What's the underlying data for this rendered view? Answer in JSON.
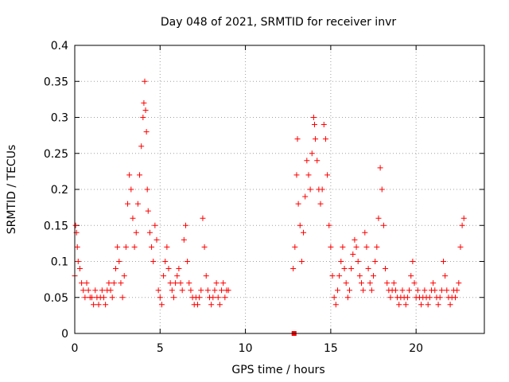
{
  "chart_data": {
    "type": "scatter",
    "title": "Day 048 of 2021, SRMTID for receiver invr",
    "xlabel": "GPS time / hours",
    "ylabel": "SRMTID / TECUs",
    "xlim": [
      0,
      24
    ],
    "ylim": [
      0,
      0.4
    ],
    "x_ticks": [
      0,
      5,
      10,
      15,
      20
    ],
    "y_ticks": [
      0,
      0.05,
      0.1,
      0.15,
      0.2,
      0.25,
      0.3,
      0.35,
      0.4
    ],
    "x_tick_labels": [
      "0",
      "5",
      "10",
      "15",
      "20"
    ],
    "y_tick_labels": [
      "0",
      "0.05",
      "0.1",
      "0.15",
      "0.2",
      "0.25",
      "0.3",
      "0.35",
      "0.4"
    ],
    "grid": true,
    "marker": "plus",
    "color": "#ff0000",
    "series": [
      {
        "x": [
          0.0,
          0.05,
          0.1,
          0.15,
          0.2,
          0.3,
          0.4,
          0.5,
          0.6,
          0.7,
          0.8,
          0.9,
          1.0,
          1.1,
          1.2,
          1.3,
          1.4,
          1.5,
          1.6,
          1.7,
          1.8,
          1.9,
          2.0,
          2.1,
          2.2,
          2.3,
          2.4,
          2.5,
          2.6,
          2.7,
          2.8,
          2.9,
          3.0,
          3.1,
          3.2,
          3.3,
          3.4,
          3.5,
          3.6,
          3.7,
          3.8,
          3.9,
          4.0,
          4.05,
          4.1,
          4.15,
          4.2,
          4.25,
          4.3,
          4.4,
          4.5,
          4.6,
          4.7,
          4.8,
          4.9,
          5.0,
          5.1,
          5.2,
          5.3,
          5.4,
          5.5,
          5.6,
          5.7,
          5.8,
          5.9,
          6.0,
          6.1,
          6.2,
          6.3,
          6.4,
          6.5,
          6.6,
          6.7,
          6.8,
          6.9,
          7.0,
          7.1,
          7.2,
          7.3,
          7.4,
          7.5,
          7.6,
          7.7,
          7.8,
          7.9,
          8.0,
          8.1,
          8.2,
          8.3,
          8.4,
          8.5,
          8.6,
          8.7,
          8.8,
          8.9,
          9.0
        ],
        "y": [
          0.08,
          0.15,
          0.14,
          0.12,
          0.1,
          0.09,
          0.07,
          0.06,
          0.05,
          0.07,
          0.06,
          0.05,
          0.05,
          0.04,
          0.06,
          0.05,
          0.04,
          0.05,
          0.06,
          0.05,
          0.04,
          0.06,
          0.07,
          0.06,
          0.05,
          0.07,
          0.09,
          0.12,
          0.1,
          0.07,
          0.05,
          0.08,
          0.12,
          0.18,
          0.22,
          0.2,
          0.16,
          0.12,
          0.14,
          0.18,
          0.22,
          0.26,
          0.3,
          0.32,
          0.35,
          0.31,
          0.28,
          0.2,
          0.17,
          0.14,
          0.12,
          0.1,
          0.15,
          0.13,
          0.06,
          0.05,
          0.04,
          0.08,
          0.1,
          0.12,
          0.09,
          0.07,
          0.06,
          0.05,
          0.07,
          0.08,
          0.09,
          0.07,
          0.06,
          0.13,
          0.15,
          0.1,
          0.07,
          0.06,
          0.05,
          0.04,
          0.05,
          0.04,
          0.05,
          0.06,
          0.16,
          0.12,
          0.08,
          0.06,
          0.05,
          0.04,
          0.05,
          0.06,
          0.07,
          0.05,
          0.04,
          0.06,
          0.07,
          0.05,
          0.06,
          0.06
        ]
      },
      {
        "x": [
          12.8,
          12.9,
          13.0,
          13.05,
          13.1,
          13.2,
          13.3,
          13.4,
          13.5,
          13.6,
          13.7,
          13.8,
          13.9,
          14.0,
          14.05,
          14.1,
          14.2,
          14.3,
          14.4,
          14.5,
          14.6,
          14.7,
          14.8,
          14.9,
          15.0,
          15.1,
          15.2,
          15.3,
          15.4,
          15.5,
          15.6,
          15.7,
          15.8,
          15.9,
          16.0,
          16.1,
          16.2,
          16.3,
          16.4,
          16.5,
          16.6,
          16.7,
          16.8,
          16.9,
          17.0,
          17.1,
          17.2,
          17.3,
          17.4,
          17.5,
          17.6,
          17.7,
          17.8,
          17.9,
          18.0,
          18.1,
          18.2,
          18.3,
          18.4,
          18.5,
          18.6,
          18.7,
          18.8,
          18.9,
          19.0,
          19.1,
          19.2,
          19.3,
          19.4,
          19.5,
          19.6,
          19.7,
          19.8,
          19.9,
          20.0,
          20.1,
          20.2,
          20.3,
          20.4,
          20.5,
          20.6,
          20.7,
          20.8,
          20.9,
          21.0,
          21.1,
          21.2,
          21.3,
          21.4,
          21.5,
          21.6,
          21.7,
          21.8,
          21.9,
          22.0,
          22.1,
          22.2,
          22.3,
          22.4,
          22.5,
          22.6,
          22.7,
          22.8
        ],
        "y": [
          0.09,
          0.12,
          0.22,
          0.27,
          0.18,
          0.15,
          0.1,
          0.14,
          0.19,
          0.24,
          0.22,
          0.2,
          0.25,
          0.3,
          0.29,
          0.27,
          0.24,
          0.2,
          0.18,
          0.2,
          0.29,
          0.27,
          0.22,
          0.15,
          0.12,
          0.08,
          0.05,
          0.04,
          0.06,
          0.08,
          0.1,
          0.12,
          0.09,
          0.07,
          0.05,
          0.06,
          0.09,
          0.11,
          0.13,
          0.12,
          0.1,
          0.08,
          0.07,
          0.06,
          0.14,
          0.12,
          0.09,
          0.07,
          0.06,
          0.08,
          0.1,
          0.12,
          0.16,
          0.23,
          0.2,
          0.15,
          0.09,
          0.07,
          0.06,
          0.05,
          0.06,
          0.07,
          0.06,
          0.05,
          0.04,
          0.05,
          0.06,
          0.05,
          0.04,
          0.05,
          0.06,
          0.08,
          0.1,
          0.07,
          0.05,
          0.06,
          0.05,
          0.04,
          0.05,
          0.06,
          0.05,
          0.04,
          0.05,
          0.06,
          0.07,
          0.06,
          0.05,
          0.04,
          0.05,
          0.06,
          0.1,
          0.08,
          0.06,
          0.05,
          0.04,
          0.05,
          0.06,
          0.05,
          0.06,
          0.07,
          0.12,
          0.15,
          0.16
        ]
      },
      {
        "x": [
          12.85
        ],
        "y": [
          0.0
        ],
        "marker": "square"
      }
    ]
  }
}
